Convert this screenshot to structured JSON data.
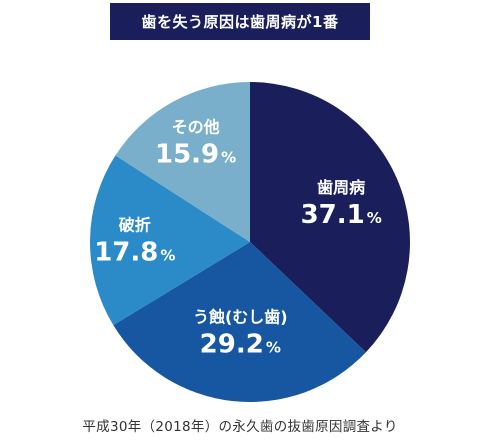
{
  "chart_data": {
    "type": "pie",
    "title": "歯を失う原因は歯周病が1番",
    "slices": [
      {
        "label": "歯周病",
        "value": 37.1,
        "display": "37.1",
        "color": "#1a1f5c"
      },
      {
        "label": "う蝕(むし歯)",
        "value": 29.2,
        "display": "29.2",
        "color": "#1756a0"
      },
      {
        "label": "破折",
        "value": 17.8,
        "display": "17.8",
        "color": "#2b8bc8"
      },
      {
        "label": "その他",
        "value": 15.9,
        "display": "15.9",
        "color": "#79afcb"
      }
    ],
    "unit": "%",
    "source": "平成30年（2018年）の永久歯の抜歯原因調査より"
  }
}
